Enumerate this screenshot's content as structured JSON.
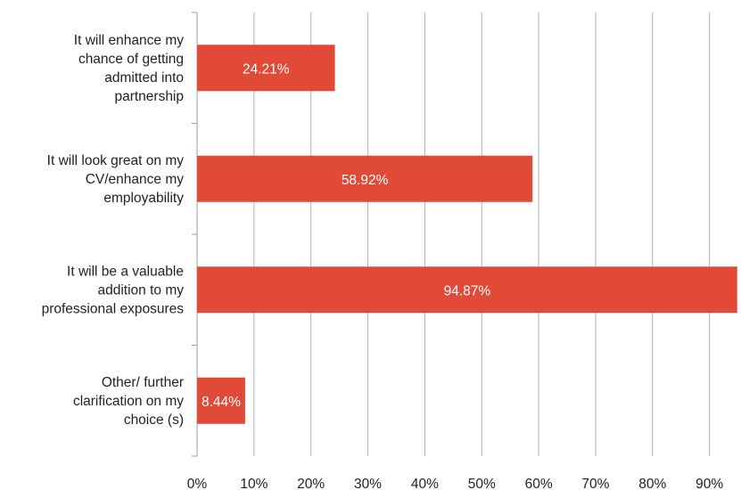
{
  "chart_data": {
    "type": "bar",
    "orientation": "horizontal",
    "categories": [
      [
        "It will enhance my",
        "chance of getting",
        "admitted into",
        "partnership"
      ],
      [
        "It will look great on my",
        "CV/enhance my",
        "employability"
      ],
      [
        "It will be a valuable",
        "addition to my",
        "professional exposures"
      ],
      [
        "Other/ further",
        "clarification on my",
        "choice (s)"
      ]
    ],
    "values": [
      24.21,
      58.92,
      94.87,
      8.44
    ],
    "data_labels": [
      "24.21%",
      "58.92%",
      "94.87%",
      "8.44%"
    ],
    "x_ticks": [
      "0%",
      "10%",
      "20%",
      "30%",
      "40%",
      "50%",
      "60%",
      "70%",
      "80%",
      "90%"
    ],
    "xlim": [
      0,
      95
    ],
    "grid": true,
    "colors": {
      "bar": "#e04a37",
      "grid": "#b3b3b3",
      "axis": "#9e9e9e"
    }
  }
}
